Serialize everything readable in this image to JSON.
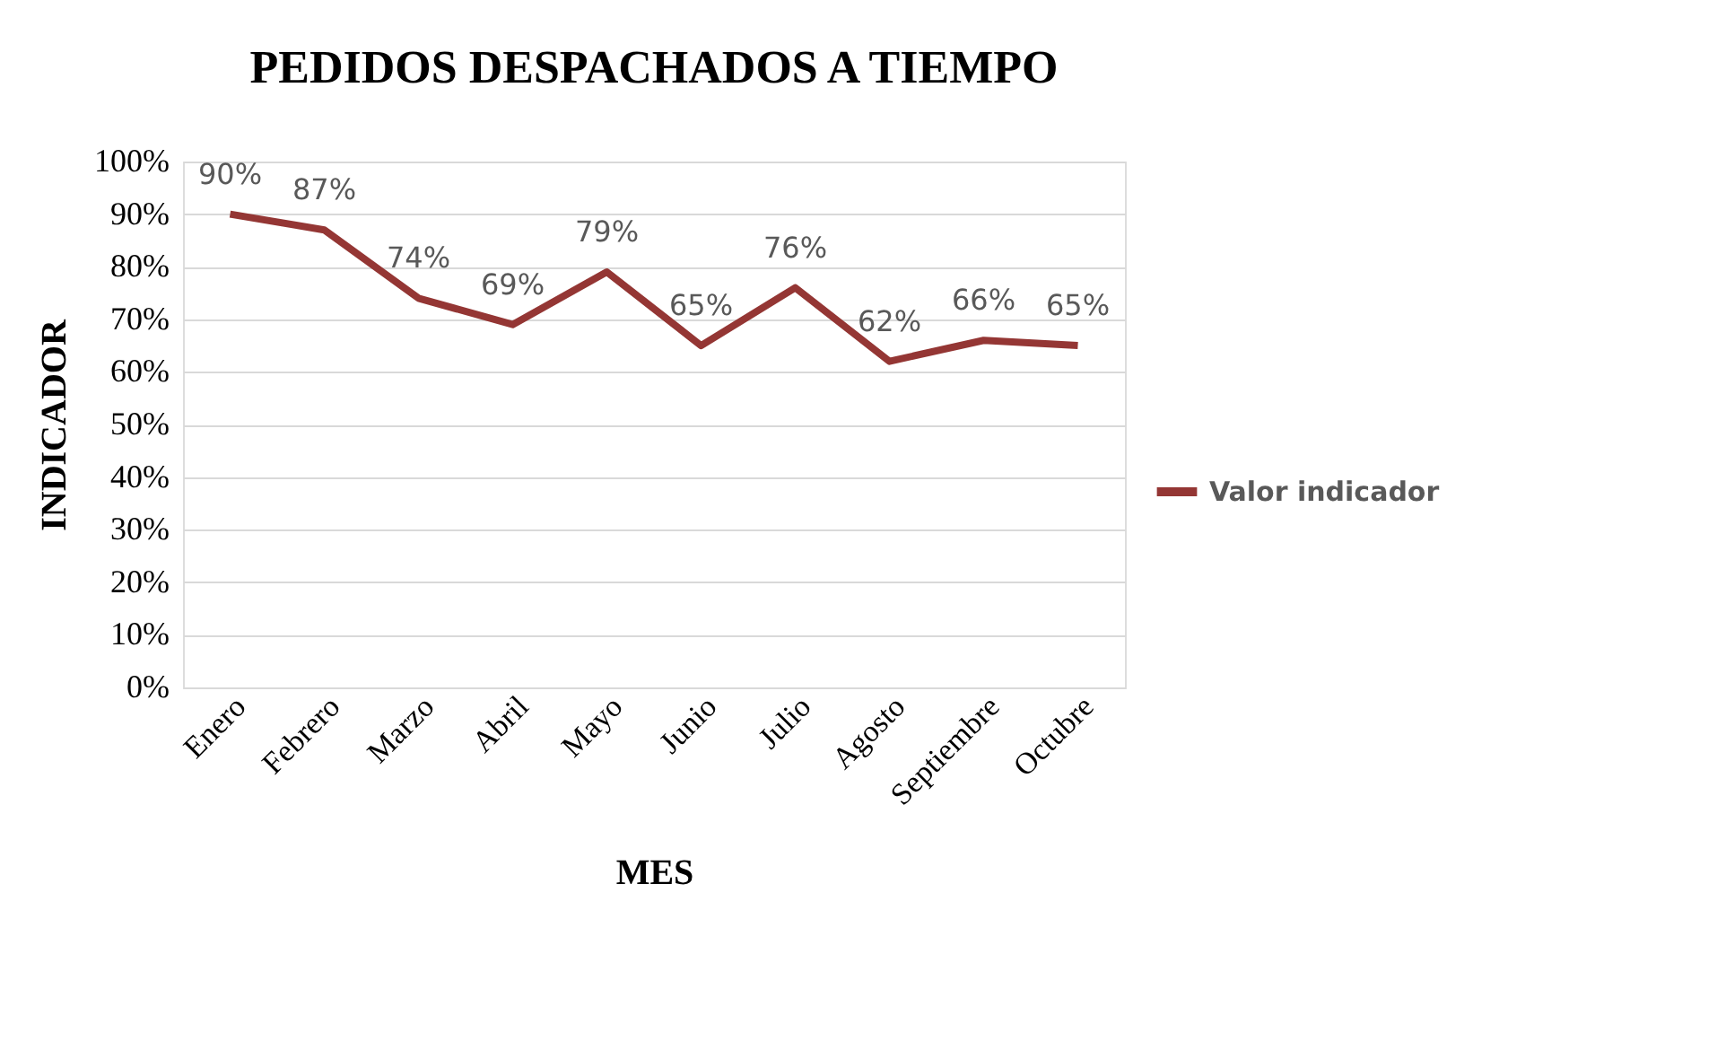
{
  "chart_data": {
    "type": "line",
    "title": "PEDIDOS DESPACHADOS A TIEMPO",
    "xlabel": "MES",
    "ylabel": "INDICADOR",
    "categories": [
      "Enero",
      "Febrero",
      "Marzo",
      "Abril",
      "Mayo",
      "Junio",
      "Julio",
      "Agosto",
      "Septiembre",
      "Octubre"
    ],
    "series": [
      {
        "name": "Valor indicador",
        "color": "#943634",
        "values": [
          90,
          87,
          74,
          69,
          79,
          65,
          76,
          62,
          66,
          65
        ],
        "value_labels": [
          "90%",
          "87%",
          "74%",
          "69%",
          "79%",
          "65%",
          "76%",
          "62%",
          "66%",
          "65%"
        ]
      }
    ],
    "ylim": [
      0,
      100
    ],
    "yticks": [
      {
        "value": 0,
        "label": "0%"
      },
      {
        "value": 10,
        "label": "10%"
      },
      {
        "value": 20,
        "label": "20%"
      },
      {
        "value": 30,
        "label": "30%"
      },
      {
        "value": 40,
        "label": "40%"
      },
      {
        "value": 50,
        "label": "50%"
      },
      {
        "value": 60,
        "label": "60%"
      },
      {
        "value": 70,
        "label": "70%"
      },
      {
        "value": 80,
        "label": "80%"
      },
      {
        "value": 90,
        "label": "90%"
      },
      {
        "value": 100,
        "label": "100%"
      }
    ],
    "grid": "y",
    "legend": "right",
    "marker": "none",
    "line_style": "solid"
  }
}
